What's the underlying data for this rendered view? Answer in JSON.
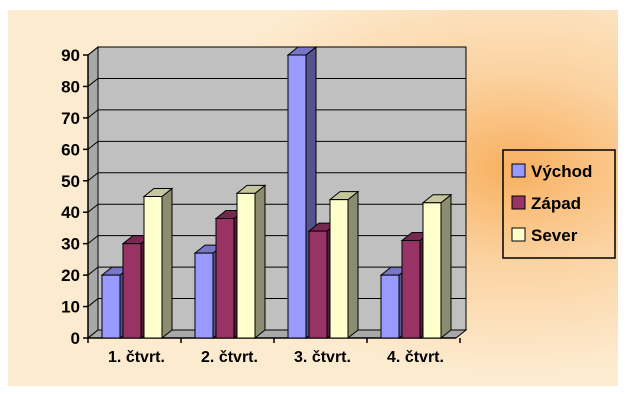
{
  "chart_data": {
    "type": "bar",
    "categories": [
      "1. čtvrt.",
      "2. čtvrt.",
      "3. čtvrt.",
      "4. čtvrt."
    ],
    "series": [
      {
        "name": "Východ",
        "values": [
          20,
          27,
          90,
          20
        ],
        "color": "#9999ff"
      },
      {
        "name": "Západ",
        "values": [
          30,
          38,
          34,
          31
        ],
        "color": "#993366"
      },
      {
        "name": "Sever",
        "values": [
          45,
          46,
          44,
          43
        ],
        "color": "#ffffcc"
      }
    ],
    "yticks": [
      "0",
      "10",
      "20",
      "30",
      "40",
      "50",
      "60",
      "70",
      "80",
      "90"
    ],
    "ylim": [
      0,
      90
    ],
    "grid": true,
    "legend_position": "right",
    "wall_color": "#c0c0c0",
    "background_color": "#fdebd0",
    "background_glow_color": "#f8b060"
  }
}
